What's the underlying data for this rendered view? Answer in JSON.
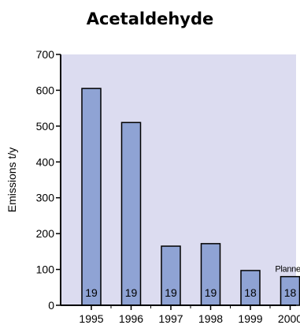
{
  "chart_data": {
    "type": "bar",
    "title": "Acetaldehyde",
    "xlabel": "",
    "ylabel": "Emissions t/y",
    "ylim": [
      0,
      700
    ],
    "yticks": [
      0,
      100,
      200,
      300,
      400,
      500,
      600,
      700
    ],
    "categories": [
      "1995",
      "1996",
      "1997",
      "1998",
      "1999",
      "2000"
    ],
    "values": [
      605,
      510,
      165,
      172,
      97,
      80
    ],
    "bar_labels": [
      "19",
      "19",
      "19",
      "19",
      "18",
      "18"
    ],
    "annotations": [
      {
        "category": "2000",
        "text": "Planned"
      }
    ],
    "grid": false,
    "colors": {
      "plot_background": "#dcdcf0",
      "bar_fill": "#8fa3d4",
      "bar_stroke": "#000000"
    }
  }
}
